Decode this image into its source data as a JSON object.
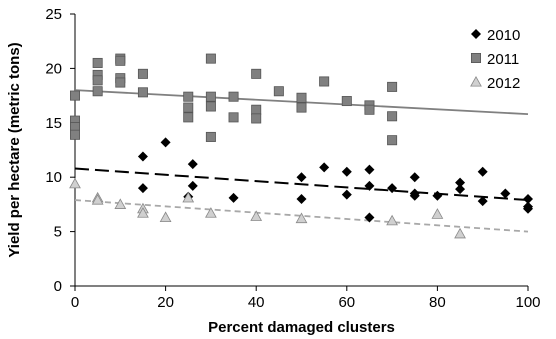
{
  "chart_data": {
    "type": "scatter",
    "title": "",
    "xlabel": "Percent damaged clusters",
    "ylabel": "Yield per hectare (metric tons)",
    "xlim": [
      0,
      100
    ],
    "ylim": [
      0,
      25
    ],
    "xticks": [
      0,
      20,
      40,
      60,
      80,
      100
    ],
    "yticks": [
      0,
      5,
      10,
      15,
      20,
      25
    ],
    "grid": false,
    "legend_position": "top-right",
    "series": [
      {
        "name": "2010",
        "marker": "diamond",
        "color": "#000000",
        "points": [
          [
            15,
            9.0
          ],
          [
            15,
            11.9
          ],
          [
            20,
            13.2
          ],
          [
            25,
            8.2
          ],
          [
            26,
            11.2
          ],
          [
            26,
            9.2
          ],
          [
            35,
            8.1
          ],
          [
            50,
            10.0
          ],
          [
            50,
            8.0
          ],
          [
            55,
            10.9
          ],
          [
            60,
            10.5
          ],
          [
            60,
            8.4
          ],
          [
            65,
            10.7
          ],
          [
            65,
            9.2
          ],
          [
            65,
            6.3
          ],
          [
            70,
            9.0
          ],
          [
            75,
            10.0
          ],
          [
            75,
            8.5
          ],
          [
            75,
            8.3
          ],
          [
            80,
            8.3
          ],
          [
            85,
            9.5
          ],
          [
            85,
            8.9
          ],
          [
            90,
            10.5
          ],
          [
            90,
            7.8
          ],
          [
            95,
            8.5
          ],
          [
            100,
            8.0
          ],
          [
            100,
            7.3
          ],
          [
            100,
            7.1
          ]
        ],
        "trendline": {
          "style": "long-dash",
          "color": "#000000",
          "y_at_0": 10.8,
          "y_at_100": 7.9
        }
      },
      {
        "name": "2011",
        "marker": "square",
        "color": "#808080",
        "points": [
          [
            0,
            17.5
          ],
          [
            0,
            15.2
          ],
          [
            0,
            14.6
          ],
          [
            0,
            13.9
          ],
          [
            5,
            20.5
          ],
          [
            5,
            19.4
          ],
          [
            5,
            18.9
          ],
          [
            5,
            17.9
          ],
          [
            10,
            20.9
          ],
          [
            10,
            20.7
          ],
          [
            10,
            19.1
          ],
          [
            10,
            18.7
          ],
          [
            15,
            19.5
          ],
          [
            15,
            17.8
          ],
          [
            25,
            17.4
          ],
          [
            25,
            16.4
          ],
          [
            25,
            15.5
          ],
          [
            30,
            20.9
          ],
          [
            30,
            17.4
          ],
          [
            30,
            16.5
          ],
          [
            30,
            13.7
          ],
          [
            35,
            17.4
          ],
          [
            35,
            15.5
          ],
          [
            40,
            19.5
          ],
          [
            40,
            16.2
          ],
          [
            40,
            15.4
          ],
          [
            45,
            17.9
          ],
          [
            50,
            17.3
          ],
          [
            50,
            16.4
          ],
          [
            55,
            18.8
          ],
          [
            60,
            17.0
          ],
          [
            65,
            16.6
          ],
          [
            65,
            16.2
          ],
          [
            70,
            18.3
          ],
          [
            70,
            15.6
          ],
          [
            70,
            13.4
          ]
        ],
        "trendline": {
          "style": "solid",
          "color": "#808080",
          "y_at_0": 18.0,
          "y_at_100": 15.8
        }
      },
      {
        "name": "2012",
        "marker": "triangle",
        "color": "#d0d0d0",
        "points": [
          [
            0,
            9.4
          ],
          [
            5,
            8.1
          ],
          [
            5,
            7.9
          ],
          [
            10,
            7.5
          ],
          [
            15,
            7.1
          ],
          [
            15,
            6.7
          ],
          [
            20,
            6.3
          ],
          [
            25,
            8.1
          ],
          [
            30,
            6.7
          ],
          [
            40,
            6.4
          ],
          [
            50,
            6.2
          ],
          [
            70,
            6.0
          ],
          [
            80,
            6.6
          ],
          [
            85,
            4.8
          ]
        ],
        "trendline": {
          "style": "short-dash",
          "color": "#a8a8a8",
          "y_at_0": 7.9,
          "y_at_100": 5.0
        }
      }
    ]
  }
}
